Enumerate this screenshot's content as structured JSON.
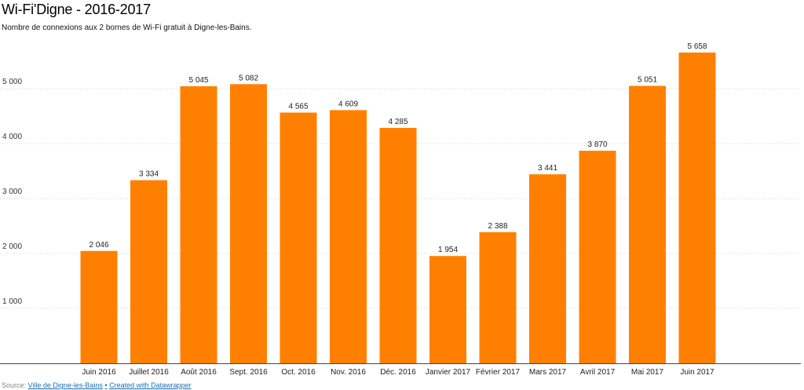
{
  "chart_data": {
    "type": "bar",
    "title": "Wi-Fi'Digne - 2016-2017",
    "subtitle": "Nombre de connexions aux 2 bornes de Wi-Fi gratuit à Digne-les-Bains.",
    "categories": [
      "Juin 2016",
      "Juillet 2016",
      "Août 2016",
      "Sept. 2016",
      "Oct. 2016",
      "Nov. 2016",
      "Déc. 2016",
      "Janvier 2017",
      "Février 2017",
      "Mars 2017",
      "Avril 2017",
      "Mai 2017",
      "Juin 2017"
    ],
    "values": [
      2046,
      3334,
      5045,
      5082,
      4565,
      4609,
      4285,
      1954,
      2388,
      3441,
      3870,
      5051,
      5658
    ],
    "value_labels": [
      "2 046",
      "3 334",
      "5 045",
      "5 082",
      "4 565",
      "4 609",
      "4 285",
      "1 954",
      "2 388",
      "3 441",
      "3 870",
      "5 051",
      "5 658"
    ],
    "yticks": [
      1000,
      2000,
      3000,
      4000,
      5000
    ],
    "ytick_labels": [
      "1 000",
      "2 000",
      "3 000",
      "4 000",
      "5 000"
    ],
    "ylim": [
      0,
      5900
    ],
    "xlabel": "",
    "ylabel": "",
    "grid": true,
    "bar_color": "#ff8000"
  },
  "footer": {
    "source_label": "Source:",
    "source_link": "Ville de Digne-les-Bains",
    "separator": "•",
    "credit": "Created with Datawrapper"
  }
}
